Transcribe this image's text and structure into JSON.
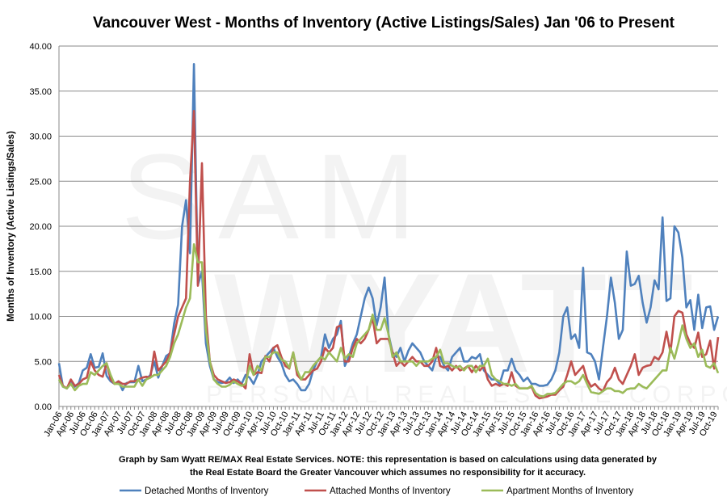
{
  "chart_data": {
    "type": "line",
    "title": "Vancouver West - Months of Inventory (Active Listings/Sales) Jan '06 to Present",
    "xlabel": "",
    "ylabel": "Months of Inventory (Active Listings/Sales)",
    "ylim": [
      0,
      40
    ],
    "yticks": [
      "0.00",
      "5.00",
      "10.00",
      "15.00",
      "20.00",
      "25.00",
      "30.00",
      "35.00",
      "40.00"
    ],
    "x_start": "Jan-06",
    "x_end": "Nov-19",
    "xtick_labels": [
      "Jan-06",
      "Apr-06",
      "Jul-06",
      "Oct-06",
      "Jan-07",
      "Apr-07",
      "Jul-07",
      "Oct-07",
      "Jan-08",
      "Apr-08",
      "Jul-08",
      "Oct-08",
      "Jan-09",
      "Apr-09",
      "Jul-09",
      "Oct-09",
      "Jan-10",
      "Apr-10",
      "Jul-10",
      "Oct-10",
      "Jan-11",
      "Apr-11",
      "Jul-11",
      "Oct-11",
      "Jan-12",
      "Apr-12",
      "Jul-12",
      "Oct-12",
      "Jan-13",
      "Apr-13",
      "Jul-13",
      "Oct-13",
      "Jan-14",
      "Apr-14",
      "Jul-14",
      "Oct-14",
      "Jan-15",
      "Apr-15",
      "Jul-15",
      "Oct-15",
      "Jan-16",
      "Apr-16",
      "Jul-16",
      "Oct-16",
      "Jan-17",
      "Apr-17",
      "Jul-17",
      "Oct-17",
      "Jan-18",
      "Apr-18",
      "Jul-18",
      "Oct-18",
      "Jan-19",
      "Apr-19",
      "Jul-19",
      "Oct-19"
    ],
    "grid": true,
    "legend_position": "bottom",
    "series": [
      {
        "name": "Detached Months of Inventory",
        "color": "#4F81BD",
        "values": [
          4.8,
          2.2,
          2.0,
          2.9,
          2.2,
          2.6,
          4.0,
          4.3,
          5.8,
          4.3,
          4.4,
          5.9,
          3.4,
          2.8,
          2.5,
          2.8,
          1.8,
          2.6,
          2.7,
          2.7,
          4.5,
          2.8,
          3.0,
          3.5,
          5.0,
          3.2,
          4.5,
          5.6,
          5.9,
          9.2,
          11.3,
          20.0,
          22.9,
          17.0,
          38.0,
          13.5,
          15.0,
          7.0,
          4.5,
          3.0,
          2.7,
          2.6,
          2.7,
          3.2,
          2.6,
          3.0,
          2.5,
          3.5,
          3.2,
          2.5,
          3.5,
          5.0,
          5.5,
          6.0,
          6.5,
          5.5,
          4.8,
          3.5,
          2.8,
          3.0,
          2.5,
          1.8,
          1.8,
          2.5,
          4.0,
          5.0,
          5.5,
          8.0,
          6.5,
          7.5,
          8.0,
          9.5,
          4.5,
          5.5,
          7.0,
          8.0,
          10.0,
          12.0,
          13.2,
          12.0,
          9.0,
          11.0,
          14.3,
          8.0,
          6.0,
          5.5,
          6.5,
          5.0,
          6.2,
          7.0,
          6.5,
          6.0,
          5.0,
          4.5,
          4.0,
          5.5,
          5.5,
          4.5,
          4.0,
          5.5,
          6.0,
          6.5,
          5.0,
          5.0,
          5.5,
          5.3,
          5.8,
          4.0,
          3.5,
          3.0,
          3.0,
          2.5,
          4.0,
          4.0,
          5.3,
          4.0,
          3.5,
          2.8,
          3.2,
          2.5,
          2.5,
          2.3,
          2.3,
          2.4,
          3.0,
          4.0,
          6.0,
          10.0,
          11.0,
          7.5,
          8.0,
          6.5,
          15.4,
          6.0,
          5.8,
          5.0,
          3.0,
          6.5,
          10.0,
          14.3,
          11.5,
          7.5,
          8.5,
          17.2,
          13.4,
          13.6,
          14.5,
          11.5,
          9.3,
          11.0,
          14.0,
          13.0,
          21.0,
          11.7,
          12.0,
          20.0,
          19.3,
          16.5,
          11.0,
          11.8,
          8.5,
          12.4,
          8.7,
          11.0,
          11.1,
          8.5,
          10.0
        ]
      },
      {
        "name": "Attached Months of Inventory",
        "color": "#C0504D",
        "values": [
          3.5,
          2.3,
          2.0,
          3.0,
          2.3,
          2.5,
          3.0,
          3.2,
          5.0,
          4.0,
          3.5,
          3.3,
          4.8,
          3.0,
          2.5,
          2.8,
          2.5,
          2.5,
          2.8,
          2.8,
          3.0,
          3.2,
          3.3,
          3.2,
          6.1,
          4.0,
          4.5,
          5.0,
          6.0,
          8.0,
          10.0,
          11.0,
          12.0,
          25.0,
          32.8,
          13.4,
          27.0,
          10.0,
          5.0,
          3.5,
          3.0,
          2.8,
          2.6,
          2.7,
          3.0,
          2.8,
          2.5,
          2.0,
          5.8,
          3.5,
          3.8,
          3.7,
          5.6,
          5.0,
          6.5,
          6.8,
          5.5,
          4.5,
          4.2,
          6.0,
          3.5,
          3.0,
          3.0,
          3.5,
          4.0,
          4.2,
          5.0,
          6.5,
          6.0,
          6.5,
          8.8,
          9.0,
          5.0,
          5.0,
          6.5,
          7.5,
          7.0,
          7.5,
          8.5,
          9.8,
          7.0,
          7.5,
          7.5,
          7.5,
          6.0,
          4.5,
          5.0,
          4.5,
          5.0,
          5.5,
          5.0,
          5.0,
          4.5,
          4.5,
          5.0,
          6.5,
          4.5,
          4.3,
          4.5,
          4.0,
          4.5,
          4.0,
          4.2,
          4.5,
          3.8,
          4.5,
          4.0,
          4.5,
          3.0,
          2.3,
          2.5,
          2.3,
          2.5,
          2.3,
          3.8,
          2.3,
          2.0,
          2.0,
          2.0,
          2.2,
          1.2,
          0.9,
          1.0,
          1.1,
          1.3,
          1.3,
          1.8,
          2.2,
          3.5,
          5.0,
          3.5,
          4.0,
          4.5,
          3.0,
          2.2,
          2.5,
          2.0,
          1.7,
          2.7,
          3.2,
          4.3,
          3.0,
          2.5,
          3.5,
          4.5,
          5.8,
          3.5,
          4.3,
          4.5,
          4.6,
          5.5,
          5.2,
          6.0,
          8.3,
          6.0,
          10.0,
          10.6,
          10.4,
          8.0,
          7.0,
          6.5,
          8.2,
          5.5,
          5.8,
          7.3,
          4.2,
          7.7
        ]
      },
      {
        "name": "Apartment Months of Inventory",
        "color": "#9BBB59",
        "values": [
          3.0,
          2.2,
          2.0,
          2.5,
          1.8,
          2.3,
          2.5,
          2.5,
          3.8,
          3.5,
          4.0,
          4.5,
          4.8,
          3.5,
          2.5,
          2.5,
          2.2,
          2.2,
          2.2,
          2.2,
          3.0,
          2.3,
          3.0,
          3.2,
          3.5,
          3.5,
          4.0,
          4.5,
          5.5,
          7.0,
          8.0,
          9.5,
          11.0,
          12.0,
          18.0,
          16.0,
          16.0,
          8.5,
          5.0,
          3.0,
          2.5,
          2.2,
          2.2,
          2.4,
          2.8,
          2.5,
          2.3,
          2.5,
          4.5,
          3.5,
          4.5,
          4.0,
          5.5,
          5.5,
          6.0,
          6.0,
          5.2,
          5.0,
          4.3,
          6.0,
          4.0,
          3.0,
          3.8,
          3.8,
          4.5,
          5.0,
          5.5,
          5.2,
          6.0,
          5.5,
          5.0,
          6.5,
          5.3,
          5.8,
          5.5,
          7.0,
          7.5,
          8.0,
          8.5,
          10.2,
          8.5,
          8.5,
          9.8,
          8.0,
          5.5,
          6.0,
          5.0,
          5.0,
          5.0,
          5.0,
          4.5,
          5.0,
          5.0,
          5.0,
          5.3,
          5.5,
          6.3,
          4.8,
          4.8,
          4.5,
          4.3,
          4.5,
          4.0,
          4.5,
          4.5,
          3.8,
          4.5,
          4.5,
          5.3,
          3.5,
          3.0,
          2.8,
          2.5,
          2.5,
          2.3,
          2.5,
          2.0,
          2.0,
          2.0,
          2.3,
          1.5,
          1.2,
          1.1,
          1.4,
          1.4,
          1.5,
          2.0,
          2.5,
          2.8,
          2.8,
          2.5,
          2.8,
          3.5,
          2.5,
          1.6,
          1.5,
          1.4,
          1.7,
          2.0,
          2.0,
          1.7,
          1.7,
          1.5,
          1.9,
          2.0,
          2.0,
          2.5,
          2.2,
          2.0,
          2.5,
          3.0,
          3.5,
          4.0,
          4.0,
          6.5,
          5.3,
          7.0,
          9.0,
          7.5,
          6.5,
          7.0,
          5.5,
          6.3,
          4.5,
          4.3,
          4.8,
          3.7
        ]
      }
    ],
    "note_line1": "Graph by Sam Wyatt RE/MAX Real Estate Services.  NOTE: this representation is based on calculations  using data generated by",
    "note_line2": "the Real Estate Board the Greater Vancouver which assumes no responsibility  for it accuracy."
  },
  "watermark": {
    "line1": "SAM",
    "line2": "WYATT",
    "line3": "PERSONAL REAL ESTATE CORPORATION"
  }
}
